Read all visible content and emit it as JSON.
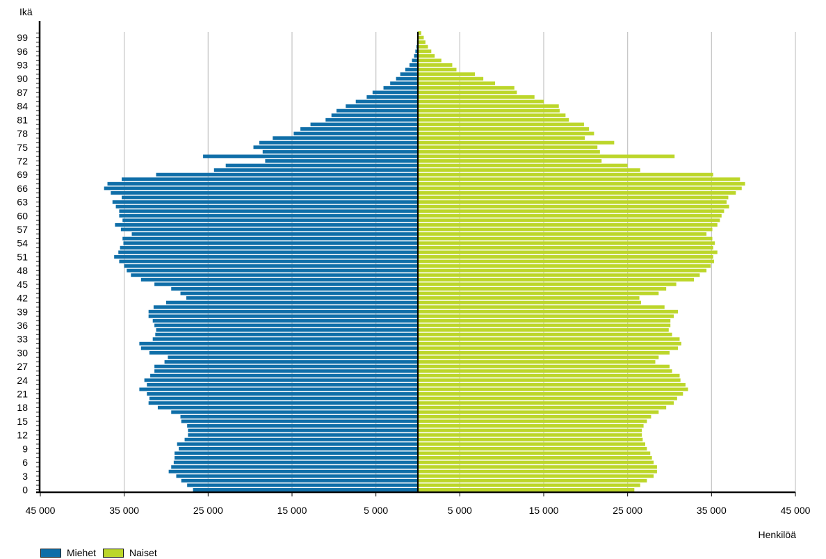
{
  "chart_data": {
    "type": "bar",
    "orientation": "horizontal",
    "subtype": "population-pyramid",
    "ylabel": "Ikä",
    "xlabel": "Henkilöä",
    "xlim": [
      -45000,
      45000
    ],
    "x_ticks": [
      -45000,
      -35000,
      -25000,
      -15000,
      -5000,
      5000,
      15000,
      25000,
      35000,
      45000
    ],
    "x_tick_labels": [
      "45 000",
      "35 000",
      "25 000",
      "15 000",
      "5 000",
      "5 000",
      "15 000",
      "25 000",
      "35 000",
      "45 000"
    ],
    "y_tick_labels": [
      "0",
      "3",
      "6",
      "9",
      "12",
      "15",
      "18",
      "21",
      "24",
      "27",
      "30",
      "33",
      "36",
      "39",
      "42",
      "45",
      "48",
      "51",
      "54",
      "57",
      "60",
      "63",
      "66",
      "69",
      "72",
      "75",
      "78",
      "81",
      "84",
      "87",
      "90",
      "93",
      "96",
      "99"
    ],
    "grid": "vertical",
    "legend_position": "bottom-left",
    "categories": [
      "0",
      "1",
      "2",
      "3",
      "4",
      "5",
      "6",
      "7",
      "8",
      "9",
      "10",
      "11",
      "12",
      "13",
      "14",
      "15",
      "16",
      "17",
      "18",
      "19",
      "20",
      "21",
      "22",
      "23",
      "24",
      "25",
      "26",
      "27",
      "28",
      "29",
      "30",
      "31",
      "32",
      "33",
      "34",
      "35",
      "36",
      "37",
      "38",
      "39",
      "40",
      "41",
      "42",
      "43",
      "44",
      "45",
      "46",
      "47",
      "48",
      "49",
      "50",
      "51",
      "52",
      "53",
      "54",
      "55",
      "56",
      "57",
      "58",
      "59",
      "60",
      "61",
      "62",
      "63",
      "64",
      "65",
      "66",
      "67",
      "68",
      "69",
      "70",
      "71",
      "72",
      "73",
      "74",
      "75",
      "76",
      "77",
      "78",
      "79",
      "80",
      "81",
      "82",
      "83",
      "84",
      "85",
      "86",
      "87",
      "88",
      "89",
      "90",
      "91",
      "92",
      "93",
      "94",
      "95",
      "96",
      "97",
      "98",
      "99",
      "100"
    ],
    "series": [
      {
        "name": "Miehet",
        "color": "#0f6ea8",
        "values": [
          26800,
          27500,
          28200,
          28800,
          29700,
          29400,
          29100,
          29000,
          29000,
          28500,
          28700,
          27800,
          27400,
          27400,
          27500,
          28200,
          28300,
          29400,
          31000,
          32100,
          32000,
          32300,
          33200,
          32300,
          32600,
          31900,
          31400,
          31400,
          30200,
          29800,
          32000,
          33000,
          33200,
          31600,
          31300,
          31200,
          31400,
          31600,
          32100,
          32100,
          31500,
          30000,
          27600,
          28300,
          29400,
          31400,
          33000,
          34200,
          34700,
          35000,
          35600,
          36200,
          35700,
          35500,
          35100,
          35200,
          34100,
          35400,
          36100,
          35200,
          35600,
          35600,
          36000,
          36400,
          35300,
          36600,
          37400,
          37000,
          35300,
          31200,
          24300,
          22900,
          18200,
          25600,
          18500,
          19600,
          18900,
          17300,
          14800,
          14000,
          12800,
          11000,
          10300,
          9700,
          8600,
          7400,
          6100,
          5400,
          4100,
          3300,
          2600,
          2100,
          1500,
          1000,
          700,
          450,
          300,
          170,
          100,
          50,
          30
        ]
      },
      {
        "name": "Naiset",
        "color": "#bcd62a",
        "values": [
          25800,
          26500,
          27300,
          28100,
          28500,
          28500,
          28100,
          27900,
          27700,
          27300,
          27100,
          26800,
          26700,
          26700,
          26900,
          27300,
          27800,
          28700,
          29600,
          30500,
          30900,
          31600,
          32200,
          31900,
          31300,
          31200,
          30300,
          30000,
          28300,
          28700,
          30000,
          31000,
          31400,
          31200,
          30300,
          29900,
          30100,
          30100,
          30500,
          31000,
          29400,
          26600,
          26400,
          28700,
          29600,
          30800,
          32900,
          33600,
          34400,
          34900,
          35300,
          35200,
          35700,
          35200,
          35400,
          35100,
          34400,
          35100,
          35700,
          36000,
          36200,
          36500,
          37100,
          36800,
          37000,
          37900,
          38600,
          39000,
          38400,
          35200,
          26500,
          25000,
          21900,
          30600,
          21700,
          21400,
          23400,
          19900,
          21000,
          20400,
          19800,
          18000,
          17600,
          16900,
          16800,
          15000,
          13900,
          11800,
          11500,
          9200,
          7800,
          6800,
          4600,
          4100,
          2800,
          2000,
          1600,
          1200,
          900,
          700,
          400
        ]
      }
    ]
  },
  "legend": {
    "items": [
      {
        "label": "Miehet",
        "color": "#0f6ea8"
      },
      {
        "label": "Naiset",
        "color": "#bcd62a"
      }
    ]
  }
}
